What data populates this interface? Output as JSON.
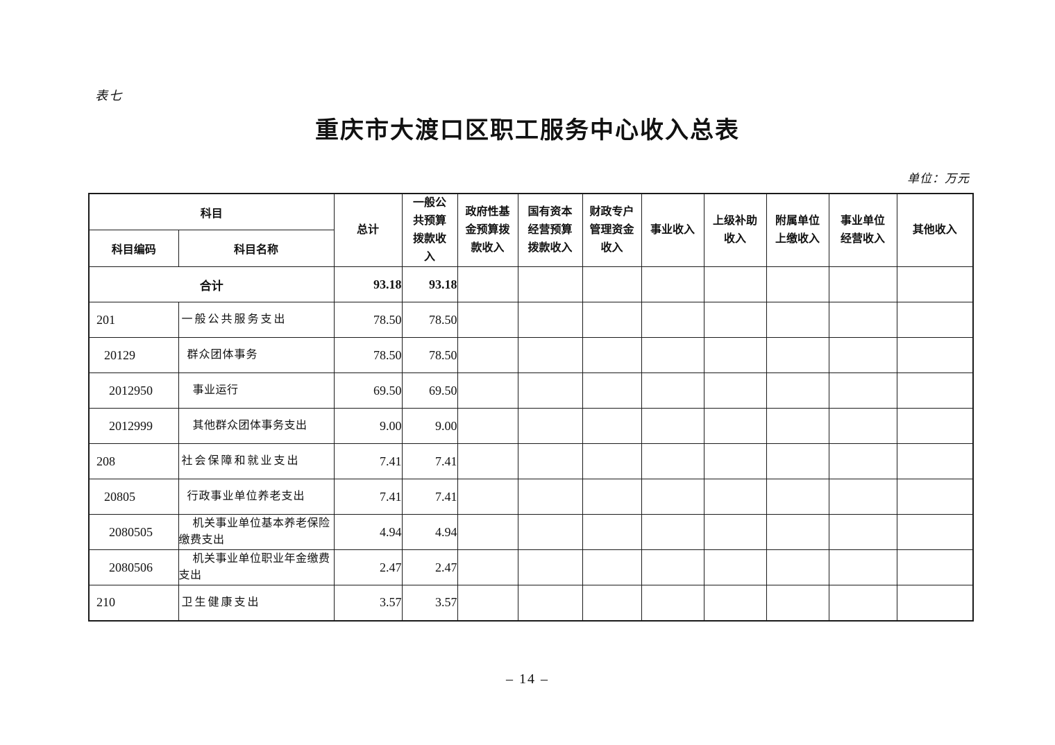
{
  "page": {
    "table_label": "表七",
    "title": "重庆市大渡口区职工服务中心收入总表",
    "unit_note": "单位：万元",
    "page_number": "– 14 –"
  },
  "table": {
    "header": {
      "subject": "科目",
      "subject_code": "科目编码",
      "subject_name": "科目名称",
      "columns": [
        "总计",
        "一般公共预算拨款收入",
        "政府性基金预算拨款收入",
        "国有资本经营预算拨款收入",
        "财政专户管理资金收入",
        "事业收入",
        "上级补助收入",
        "附属单位上缴收入",
        "事业单位经营收入",
        "其他收入"
      ]
    },
    "total_row": {
      "label": "合计",
      "total": "93.18",
      "general_budget": "93.18"
    },
    "rows": [
      {
        "code": "201",
        "name": "一般公共服务支出",
        "total": "78.50",
        "general_budget": "78.50",
        "level": 0
      },
      {
        "code": "20129",
        "name": "群众团体事务",
        "total": "78.50",
        "general_budget": "78.50",
        "level": 1
      },
      {
        "code": "2012950",
        "name": "事业运行",
        "total": "69.50",
        "general_budget": "69.50",
        "level": 2
      },
      {
        "code": "2012999",
        "name": "其他群众团体事务支出",
        "total": "9.00",
        "general_budget": "9.00",
        "level": 2
      },
      {
        "code": "208",
        "name": "社会保障和就业支出",
        "total": "7.41",
        "general_budget": "7.41",
        "level": 0
      },
      {
        "code": "20805",
        "name": "行政事业单位养老支出",
        "total": "7.41",
        "general_budget": "7.41",
        "level": 1
      },
      {
        "code": "2080505",
        "name": "机关事业单位基本养老保险缴费支出",
        "total": "4.94",
        "general_budget": "4.94",
        "level": 2
      },
      {
        "code": "2080506",
        "name": "机关事业单位职业年金缴费支出",
        "total": "2.47",
        "general_budget": "2.47",
        "level": 2
      },
      {
        "code": "210",
        "name": "卫生健康支出",
        "total": "3.57",
        "general_budget": "3.57",
        "level": 0
      }
    ],
    "empty_value_columns": 8
  }
}
